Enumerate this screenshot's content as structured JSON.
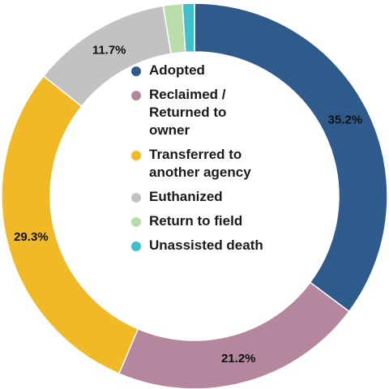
{
  "chart_data": {
    "type": "pie",
    "donut": true,
    "categories": [
      "Adopted",
      "Reclaimed / Returned to owner",
      "Transferred to another agency",
      "Euthanized",
      "Return to field",
      "Unassisted death"
    ],
    "values": [
      35.2,
      21.2,
      29.3,
      11.7,
      1.6,
      1.0
    ],
    "data_labels": [
      "35.2%",
      "21.2%",
      "29.3%",
      "11.7%",
      "",
      ""
    ],
    "colors": [
      "#2f5b8c",
      "#b5879f",
      "#f2b926",
      "#c2c2c2",
      "#b8dcaa",
      "#3fbfcc"
    ],
    "legend": {
      "placement": "center",
      "entries": [
        {
          "label": "Adopted",
          "color": "#2f5b8c"
        },
        {
          "label": "Reclaimed /\nReturned to\nowner",
          "color": "#b5879f"
        },
        {
          "label": "Transferred to\nanother agency",
          "color": "#f2b926"
        },
        {
          "label": "Euthanized",
          "color": "#c2c2c2"
        },
        {
          "label": "Return to field",
          "color": "#b8dcaa"
        },
        {
          "label": "Unassisted death",
          "color": "#3fbfcc"
        }
      ]
    }
  }
}
